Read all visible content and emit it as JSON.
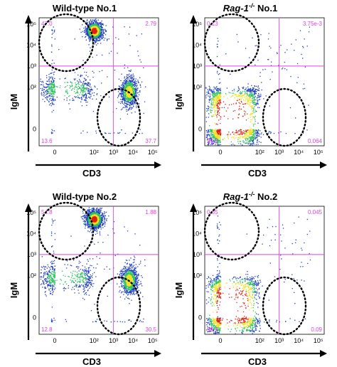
{
  "colors": {
    "gate": "#e040e0",
    "quadrant_text": "#e040e0",
    "density_low": "#1f3fbf",
    "density_mid": "#30c060",
    "density_high": "#f0e020",
    "density_peak": "#e02010",
    "axis": "#000000"
  },
  "chart_data": [
    {
      "type": "scatter",
      "subtype": "flow-cytometry-density-plot",
      "title": "Wild-type No.1",
      "xlabel": "CD3",
      "ylabel": "IgM",
      "x_scale": "biexponential",
      "y_scale": "biexponential",
      "x_ticks": [
        "0",
        "10²",
        "10³",
        "10⁴",
        "10⁵"
      ],
      "y_ticks": [
        "0",
        "10²",
        "10³",
        "10⁴",
        "10⁵"
      ],
      "gate": {
        "x": 1000,
        "y": 1000
      },
      "quadrants": {
        "upper_left": "47.0",
        "upper_right": "2.79",
        "lower_left": "13.6",
        "lower_right": "37.7"
      },
      "populations": [
        {
          "name": "IgM+CD3-",
          "center_x": 100,
          "center_y": 50000,
          "level": "high"
        },
        {
          "name": "IgM-CD3+",
          "center_x": 6000,
          "center_y": 60,
          "level": "mid"
        },
        {
          "name": "IgM-CD3-",
          "center_x": 0,
          "center_y": 80,
          "level": "low"
        }
      ],
      "circled_regions": [
        "upper-left",
        "lower-right"
      ]
    },
    {
      "type": "scatter",
      "subtype": "flow-cytometry-density-plot",
      "title": "Rag-1-/- No.1",
      "xlabel": "CD3",
      "ylabel": "IgM",
      "x_scale": "biexponential",
      "y_scale": "biexponential",
      "x_ticks": [
        "0",
        "10²",
        "10³",
        "10⁴",
        "10⁵"
      ],
      "y_ticks": [
        "0",
        "10²",
        "10³",
        "10⁴",
        "10⁵"
      ],
      "gate": {
        "x": 1000,
        "y": 1000
      },
      "quadrants": {
        "upper_left": "0.13",
        "upper_right": "3.75e-3",
        "lower_left": "99.8",
        "lower_right": "0.064"
      },
      "populations": [
        {
          "name": "IgM-CD3-",
          "center_x": 0,
          "center_y": 0,
          "level": "peak"
        }
      ],
      "circled_regions": [
        "upper-left",
        "lower-right"
      ]
    },
    {
      "type": "scatter",
      "subtype": "flow-cytometry-density-plot",
      "title": "Wild-type No.2",
      "xlabel": "CD3",
      "ylabel": "IgM",
      "x_scale": "biexponential",
      "y_scale": "biexponential",
      "x_ticks": [
        "0",
        "10²",
        "10³",
        "10⁴",
        "10⁵"
      ],
      "y_ticks": [
        "0",
        "10²",
        "10³",
        "10⁴",
        "10⁵"
      ],
      "gate": {
        "x": 1000,
        "y": 1000
      },
      "quadrants": {
        "upper_left": "54.8",
        "upper_right": "1.88",
        "lower_left": "12.8",
        "lower_right": "30.5"
      },
      "populations": [
        {
          "name": "IgM+CD3-",
          "center_x": 100,
          "center_y": 50000,
          "level": "peak"
        },
        {
          "name": "IgM-CD3+",
          "center_x": 6000,
          "center_y": 60,
          "level": "mid"
        },
        {
          "name": "IgM-CD3-",
          "center_x": 0,
          "center_y": 80,
          "level": "low"
        }
      ],
      "circled_regions": [
        "upper-left",
        "lower-right"
      ]
    },
    {
      "type": "scatter",
      "subtype": "flow-cytometry-density-plot",
      "title": "Rag-1-/- No.2",
      "xlabel": "CD3",
      "ylabel": "IgM",
      "x_scale": "biexponential",
      "y_scale": "biexponential",
      "x_ticks": [
        "0",
        "10²",
        "10³",
        "10⁴",
        "10⁵"
      ],
      "y_ticks": [
        "0",
        "10²",
        "10³",
        "10⁴",
        "10⁵"
      ],
      "gate": {
        "x": 1000,
        "y": 1000
      },
      "quadrants": {
        "upper_left": "0.35",
        "upper_right": "0.045",
        "lower_left": "99.3",
        "lower_right": "0.09"
      },
      "populations": [
        {
          "name": "IgM-CD3-",
          "center_x": 0,
          "center_y": 0,
          "level": "high"
        }
      ],
      "circled_regions": [
        "upper-left",
        "lower-right"
      ]
    }
  ]
}
